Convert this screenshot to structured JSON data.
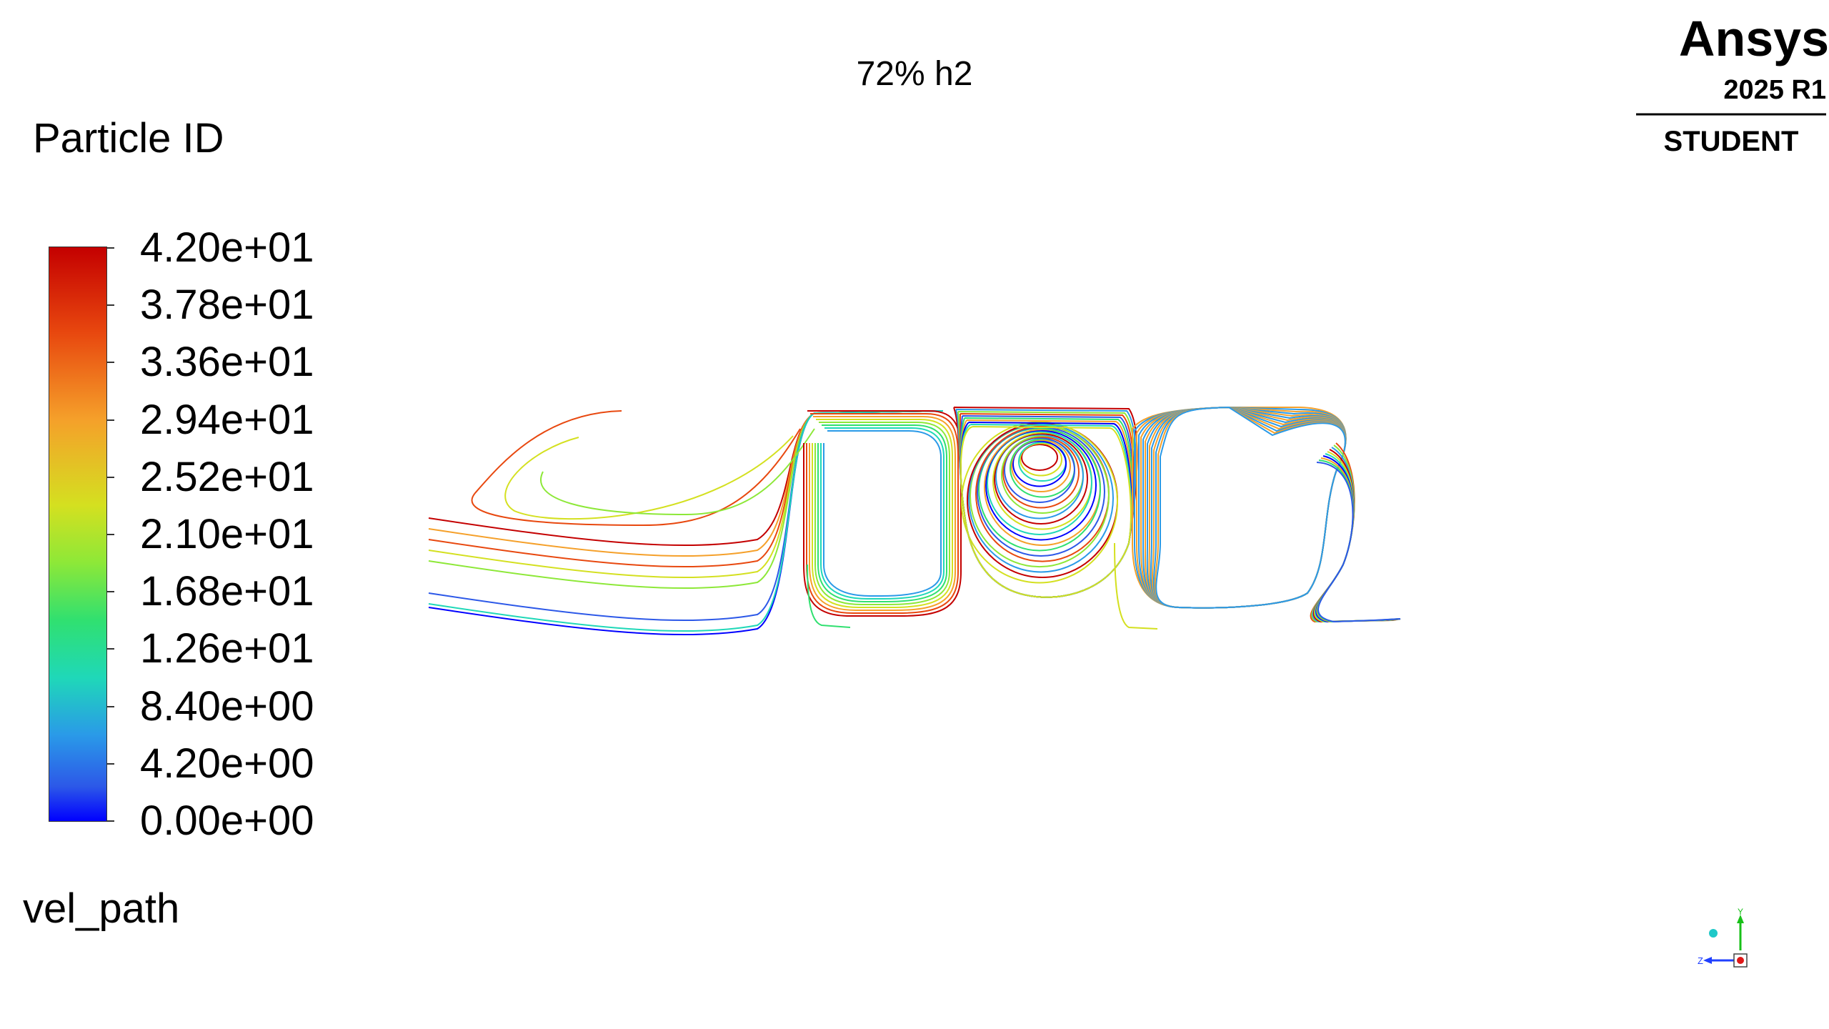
{
  "title": "72% h2",
  "legend": {
    "title": "Particle ID",
    "ticks": [
      "4.20e+01",
      "3.78e+01",
      "3.36e+01",
      "2.94e+01",
      "2.52e+01",
      "2.10e+01",
      "1.68e+01",
      "1.26e+01",
      "8.40e+00",
      "4.20e+00",
      "0.00e+00"
    ],
    "colormap": [
      "#c40000",
      "#e8480f",
      "#f5a02a",
      "#d4e020",
      "#8de838",
      "#30e070",
      "#1fd8b8",
      "#2a9ae8",
      "#2c58e8",
      "#0000ff"
    ]
  },
  "plot_name": "vel_path",
  "logo": {
    "brand": "Ansys",
    "version": "2025 R1",
    "edition": "STUDENT"
  },
  "axis_triad": {
    "x_label": "Y",
    "z_label": "Z"
  }
}
